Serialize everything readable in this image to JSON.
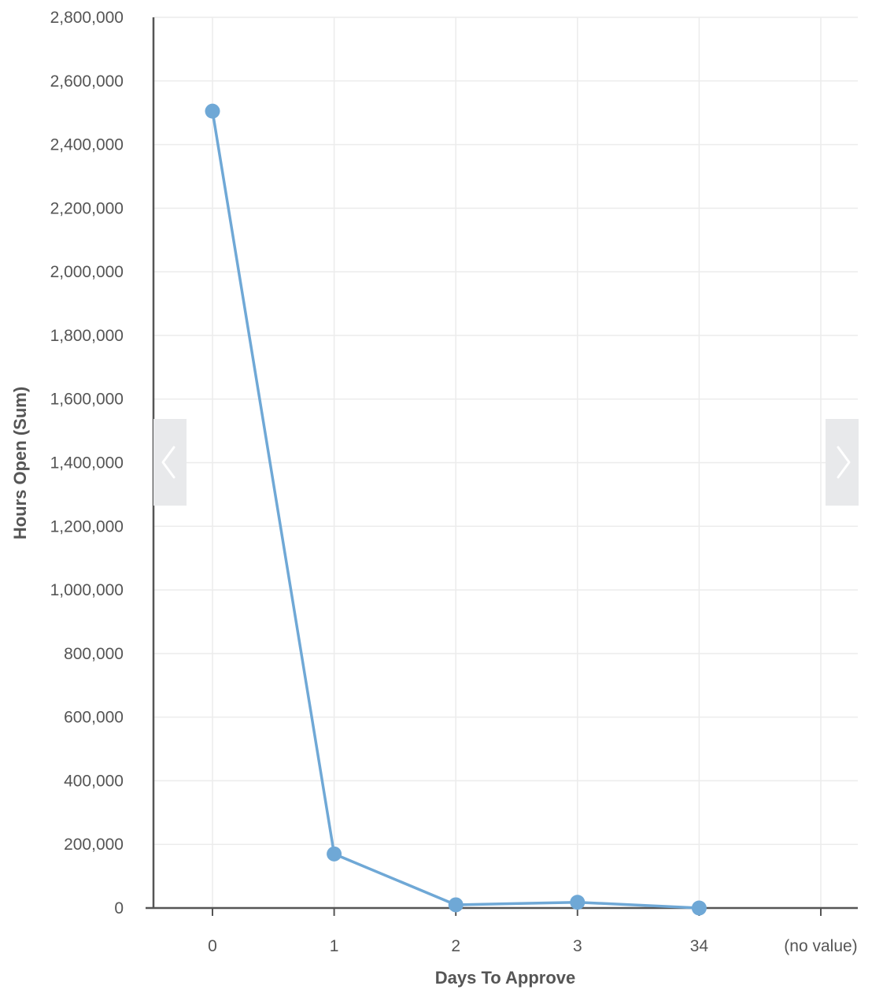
{
  "chart_data": {
    "type": "line",
    "title": "",
    "xlabel": "Days To Approve",
    "ylabel": "Hours Open (Sum)",
    "categories": [
      "0",
      "1",
      "2",
      "3",
      "34",
      "(no value)"
    ],
    "series": [
      {
        "values": [
          2505000,
          170000,
          10000,
          18000,
          0,
          null
        ],
        "color": "#6fa8d6"
      }
    ],
    "ylim": [
      0,
      2800000
    ],
    "yticks": [
      0,
      200000,
      400000,
      600000,
      800000,
      1000000,
      1200000,
      1400000,
      1600000,
      1800000,
      2000000,
      2200000,
      2400000,
      2600000,
      2800000
    ],
    "ytick_labels": [
      "0",
      "200,000",
      "400,000",
      "600,000",
      "800,000",
      "1,000,000",
      "1,200,000",
      "1,400,000",
      "1,600,000",
      "1,800,000",
      "2,000,000",
      "2,200,000",
      "2,400,000",
      "2,600,000",
      "2,800,000"
    ],
    "grid": true,
    "legend": "none"
  },
  "navigation": {
    "prev_icon": "chevron-left-icon",
    "next_icon": "chevron-right-icon"
  }
}
